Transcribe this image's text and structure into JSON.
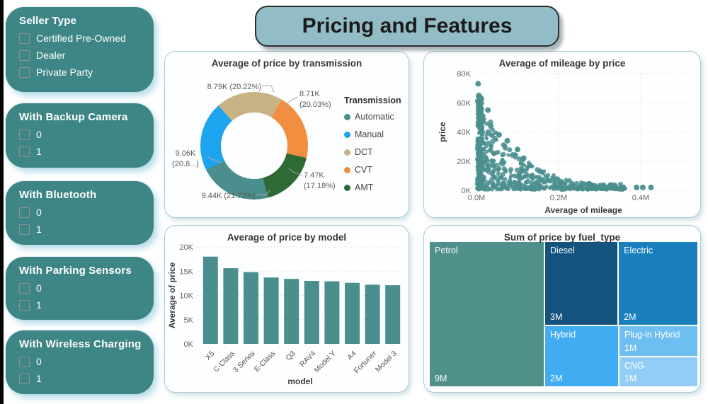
{
  "page": {
    "title": "Pricing and Features"
  },
  "slicers": [
    {
      "title": "Seller Type",
      "options": [
        "Certified Pre-Owned",
        "Dealer",
        "Private Party"
      ]
    },
    {
      "title": "With Backup Camera",
      "options": [
        "0",
        "1"
      ]
    },
    {
      "title": "With Bluetooth",
      "options": [
        "0",
        "1"
      ]
    },
    {
      "title": "With Parking Sensors",
      "options": [
        "0",
        "1"
      ]
    },
    {
      "title": "With Wireless Charging",
      "options": [
        "0",
        "1"
      ]
    }
  ],
  "chart_data": [
    {
      "type": "pie",
      "title": "Average of price by transmission",
      "legend_title": "Transmission",
      "legend_position": "right",
      "start_angle_deg": 165,
      "series": [
        {
          "name": "Automatic",
          "value": 9.44,
          "pct": 21.72,
          "color": "#4A8E8E",
          "label_lines": [
            "9.44K (21.72%)"
          ]
        },
        {
          "name": "Manual",
          "value": 9.06,
          "pct": 20.85,
          "color": "#1CA4EE",
          "label_lines": [
            "9.06K",
            "(20.8...)"
          ]
        },
        {
          "name": "DCT",
          "value": 8.79,
          "pct": 20.22,
          "color": "#C7B384",
          "label_lines": [
            "8.79K (20.22%)"
          ]
        },
        {
          "name": "CVT",
          "value": 8.71,
          "pct": 20.03,
          "color": "#F28E3F",
          "label_lines": [
            "8.71K",
            "(20.03%)"
          ]
        },
        {
          "name": "AMT",
          "value": 7.47,
          "pct": 17.18,
          "color": "#2D6A35",
          "label_lines": [
            "7.47K",
            "(17.18%)"
          ]
        }
      ]
    },
    {
      "type": "scatter",
      "title": "Average of mileage by price",
      "xlabel": "Average of mileage",
      "ylabel": "price",
      "x_ticks": [
        "0.0M",
        "0.2M",
        "0.4M"
      ],
      "x_tick_values": [
        0.0,
        0.2,
        0.4
      ],
      "y_ticks": [
        "0K",
        "20K",
        "40K",
        "60K",
        "80K"
      ],
      "y_tick_values": [
        0,
        20,
        40,
        60,
        80
      ],
      "xlim": [
        0,
        0.52
      ],
      "ylim": [
        0,
        80
      ],
      "grid": "dotted",
      "point_color": "#4A8E8E",
      "outliers": [
        [
          0.004,
          73
        ],
        [
          0.006,
          65
        ],
        [
          0.01,
          63
        ],
        [
          0.028,
          55
        ],
        [
          0.035,
          44
        ],
        [
          0.055,
          38
        ],
        [
          0.075,
          34
        ],
        [
          0.1,
          28
        ],
        [
          0.115,
          22
        ],
        [
          0.13,
          17
        ],
        [
          0.155,
          13
        ],
        [
          0.39,
          2
        ],
        [
          0.405,
          2
        ],
        [
          0.425,
          2
        ]
      ],
      "density_model": {
        "seed": 7,
        "column_points": 160,
        "mass_points": 520,
        "tail_points": 60,
        "envelope": "y = 65 * exp(-10x), x in millions"
      }
    },
    {
      "type": "bar",
      "title": "Average of price by model",
      "xlabel": "model",
      "ylabel": "Average of price",
      "categories": [
        "X5",
        "C-Class",
        "3 Series",
        "E-Class",
        "Q3",
        "RAV4",
        "Model Y",
        "A4",
        "Fortuner",
        "Model 3"
      ],
      "values": [
        18.0,
        15.6,
        14.8,
        13.7,
        13.4,
        13.0,
        12.9,
        12.6,
        12.2,
        12.1
      ],
      "y_ticks": [
        "0K",
        "5K",
        "10K",
        "15K",
        "20K"
      ],
      "y_tick_values": [
        0,
        5,
        10,
        15,
        20
      ],
      "ylim": [
        0,
        20
      ],
      "grid": "dotted",
      "bar_color": "#4A8E8E"
    },
    {
      "type": "treemap",
      "title": "Sum of price by fuel_type",
      "cells": [
        {
          "label": "Petrol",
          "value": "9M",
          "color": "#4F908B"
        },
        {
          "label": "Diesel",
          "value": "3M",
          "color": "#14537D"
        },
        {
          "label": "Electric",
          "value": "2M",
          "color": "#1B7FBE"
        },
        {
          "label": "Hybrid",
          "value": "2M",
          "color": "#41ACF1"
        },
        {
          "label": "Plug-in Hybrid",
          "value": "1M",
          "color": "#6FBEF2"
        },
        {
          "label": "CNG",
          "value": "1M",
          "color": "#92CDF5"
        }
      ]
    }
  ]
}
